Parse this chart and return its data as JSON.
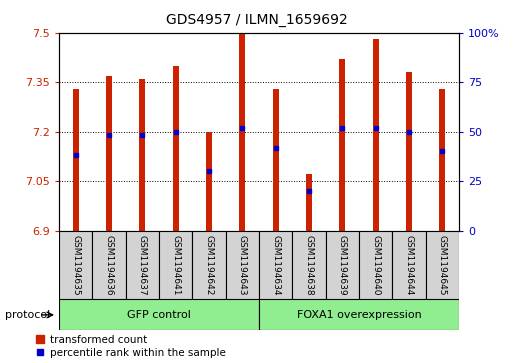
{
  "title": "GDS4957 / ILMN_1659692",
  "samples": [
    "GSM1194635",
    "GSM1194636",
    "GSM1194637",
    "GSM1194641",
    "GSM1194642",
    "GSM1194643",
    "GSM1194634",
    "GSM1194638",
    "GSM1194639",
    "GSM1194640",
    "GSM1194644",
    "GSM1194645"
  ],
  "bar_tops": [
    7.33,
    7.37,
    7.36,
    7.4,
    7.2,
    7.5,
    7.33,
    7.07,
    7.42,
    7.48,
    7.38,
    7.33
  ],
  "blue_dots": [
    7.13,
    7.19,
    7.19,
    7.2,
    7.08,
    7.21,
    7.15,
    7.02,
    7.21,
    7.21,
    7.2,
    7.14
  ],
  "bar_bottom": 6.9,
  "ylim_left": [
    6.9,
    7.5
  ],
  "ylim_right": [
    0,
    100
  ],
  "yticks_left": [
    6.9,
    7.05,
    7.2,
    7.35,
    7.5
  ],
  "yticks_right": [
    0,
    25,
    50,
    75,
    100
  ],
  "bar_color": "#CC2200",
  "dot_color": "#0000CC",
  "bar_width": 0.18,
  "left_label_color": "#CC2200",
  "right_label_color": "#0000CC",
  "legend_items": [
    "transformed count",
    "percentile rank within the sample"
  ],
  "protocol_label": "protocol",
  "group1_label": "GFP control",
  "group2_label": "FOXA1 overexpression",
  "group_color": "#90EE90",
  "sample_box_color": "#D3D3D3"
}
